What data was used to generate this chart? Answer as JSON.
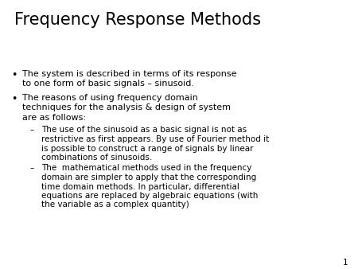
{
  "title": "Frequency Response Methods",
  "background_color": "#ffffff",
  "text_color": "#000000",
  "title_fontsize": 15,
  "body_fontsize": 8.0,
  "sub_fontsize": 7.5,
  "slide_number": "1",
  "bullet1_line1": "The system is described in terms of its response",
  "bullet1_line2": "to one form of basic signals – sinusoid.",
  "bullet2_line1": "The reasons of using frequency domain",
  "bullet2_line2": "techniques for the analysis & design of system",
  "bullet2_line3": "are as follows:",
  "sub1_line1": "The use of the sinusoid as a basic signal is not as",
  "sub1_line2": "restrictive as first appears. By use of Fourier method it",
  "sub1_line3": "is possible to construct a range of signals by linear",
  "sub1_line4": "combinations of sinusoids.",
  "sub2_line1": "The  mathematical methods used in the frequency",
  "sub2_line2": "domain are simpler to apply that the corresponding",
  "sub2_line3": "time domain methods. In particular, differential",
  "sub2_line4": "equations are replaced by algebraic equations (with",
  "sub2_line5": "the variable as a complex quantity)"
}
